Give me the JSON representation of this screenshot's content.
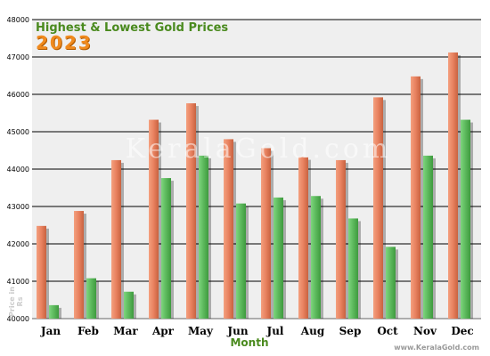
{
  "chart_data": {
    "type": "bar",
    "title": "Highest & Lowest Gold Prices",
    "subtitle": "2023",
    "xlabel": "Month",
    "ylabel": "Price in Rs",
    "watermark": "KeralaGold.com",
    "footer": "www.KeralaGold.com",
    "categories": [
      "Jan",
      "Feb",
      "Mar",
      "Apr",
      "May",
      "Jun",
      "Jul",
      "Aug",
      "Sep",
      "Oct",
      "Nov",
      "Dec"
    ],
    "series": [
      {
        "values": [
          42480,
          42880,
          44240,
          45320,
          45760,
          44800,
          44560,
          44320,
          44240,
          45920,
          46480,
          47120
        ]
      },
      {
        "values": [
          40360,
          41080,
          40720,
          43760,
          44360,
          43080,
          43240,
          43280,
          42680,
          41920,
          44360,
          45320
        ]
      }
    ],
    "ylim": [
      40000,
      48000
    ],
    "yticks": [
      40000,
      41000,
      42000,
      43000,
      44000,
      45000,
      46000,
      47000,
      48000
    ],
    "grid": true,
    "colors": {
      "high": "#e8815f",
      "low": "#5cb85c",
      "plot_bg": "#efefef",
      "grid": "#000000"
    }
  }
}
